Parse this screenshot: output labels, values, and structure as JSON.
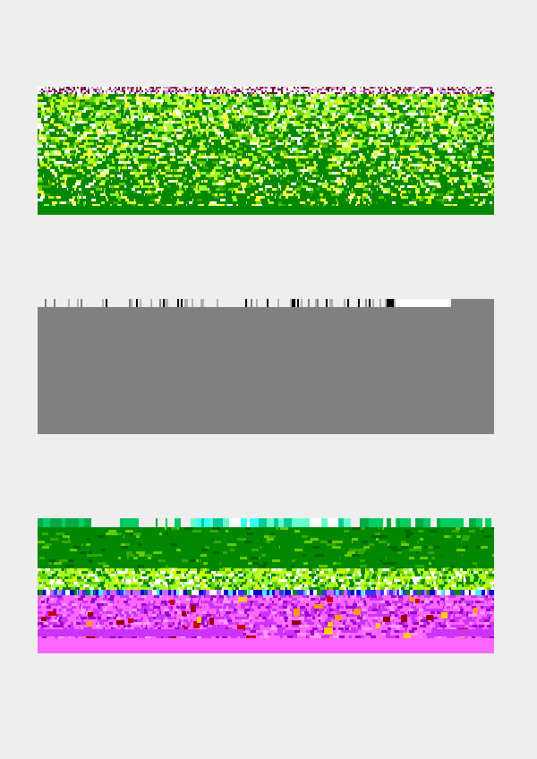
{
  "background_color": "#eeeeee",
  "panels": [
    {
      "name": "top-noise-panel",
      "dominant_colors": [
        "#008800",
        "#66cc00",
        "#99ff33",
        "#ccff00",
        "#ffff33",
        "#ffffff",
        "#993366"
      ]
    },
    {
      "name": "middle-gray-panel",
      "dominant_colors": [
        "#808080",
        "#ffffff",
        "#000000",
        "#bbaaaa"
      ]
    },
    {
      "name": "bottom-noise-panel",
      "dominant_colors": [
        "#008800",
        "#00cc66",
        "#33ffff",
        "#66cc00",
        "#99ff33",
        "#0000cc",
        "#ff66ff",
        "#cc33ff",
        "#9900cc",
        "#cc0000",
        "#ffcc00"
      ]
    }
  ]
}
